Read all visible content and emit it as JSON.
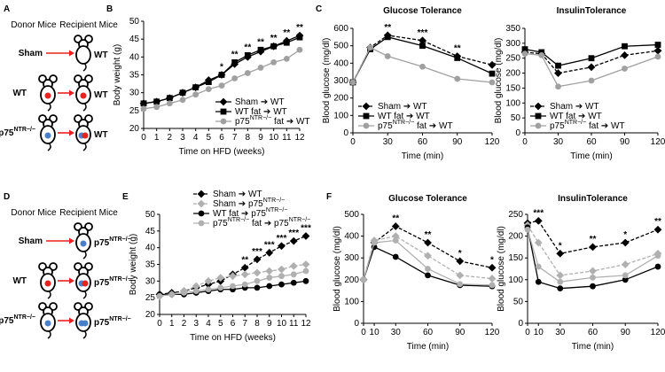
{
  "diagrams": [
    {
      "panel": "A",
      "headers": [
        "Donor Mice",
        "Recipient Mice"
      ],
      "rows": [
        {
          "donor": "Sham",
          "recipient": "WT"
        },
        {
          "donor": "WT",
          "recipient": "WT"
        },
        {
          "donor": "p75NTR−/−",
          "recipient": "WT"
        }
      ]
    },
    {
      "panel": "D",
      "headers": [
        "Donor Mice",
        "Recipient Mice"
      ],
      "rows": [
        {
          "donor": "Sham",
          "recipient": "p75NTR−/−"
        },
        {
          "donor": "WT",
          "recipient": "p75NTR−/−"
        },
        {
          "donor": "p75NTR−/−",
          "recipient": "p75NTR−/−"
        }
      ]
    }
  ],
  "chart_data": [
    {
      "type": "line",
      "panel": "B",
      "xlabel": "Time on HFD (weeks)",
      "ylabel": "Body weight (g)",
      "x": [
        0,
        1,
        2,
        3,
        4,
        5,
        6,
        7,
        8,
        9,
        10,
        11,
        12
      ],
      "xlim": [
        0,
        12
      ],
      "xticks": [
        0,
        1,
        2,
        3,
        4,
        5,
        6,
        7,
        8,
        9,
        10,
        11,
        12
      ],
      "ylim": [
        20,
        50
      ],
      "yticks": [
        20,
        25,
        30,
        35,
        40,
        45,
        50
      ],
      "legend": "lower-right",
      "series": [
        {
          "name": "Sham ➔ WT",
          "color": "#000000",
          "marker": "diamond",
          "dash": false,
          "values": [
            27,
            27.5,
            28.5,
            30,
            31.5,
            33.5,
            35,
            38,
            40,
            41.5,
            43,
            44.5,
            46
          ]
        },
        {
          "name": "WT fat ➔ WT",
          "color": "#000000",
          "marker": "square",
          "dash": false,
          "values": [
            27,
            27.5,
            28.5,
            30,
            31.5,
            33,
            35,
            38.5,
            40.5,
            42,
            43,
            44,
            45.5
          ]
        },
        {
          "name": "p75NTR−/− fat ➔ WT",
          "color": "#a0a0a0",
          "marker": "circle",
          "dash": false,
          "values": [
            25.5,
            26,
            27,
            28,
            29.5,
            31,
            32,
            34,
            35.5,
            37,
            38.5,
            39.5,
            42
          ]
        }
      ],
      "annotations": [
        {
          "x": 6,
          "text": "*"
        },
        {
          "x": 7,
          "text": "**"
        },
        {
          "x": 8,
          "text": "**"
        },
        {
          "x": 9,
          "text": "**"
        },
        {
          "x": 10,
          "text": "**"
        },
        {
          "x": 11,
          "text": "**"
        },
        {
          "x": 12,
          "text": "**"
        }
      ]
    },
    {
      "type": "line",
      "panel": "C",
      "title": "Glucose Tolerance",
      "xlabel": "Time (min)",
      "ylabel": "Blood glucose (mg/dl)",
      "x": [
        0,
        15,
        30,
        60,
        90,
        120
      ],
      "xlim": [
        0,
        120
      ],
      "xticks": [
        0,
        30,
        60,
        90,
        120
      ],
      "ylim": [
        0,
        600
      ],
      "yticks": [
        0,
        100,
        200,
        300,
        400,
        500,
        600
      ],
      "legend": "lower-left",
      "series": [
        {
          "name": "Sham ➔ WT",
          "color": "#000000",
          "marker": "diamond",
          "dash": true,
          "values": [
            290,
            490,
            560,
            530,
            440,
            390
          ]
        },
        {
          "name": "WT fat ➔ WT",
          "color": "#000000",
          "marker": "square",
          "dash": false,
          "values": [
            290,
            480,
            550,
            500,
            430,
            340
          ]
        },
        {
          "name": "p75NTR−/− fat ➔ WT",
          "color": "#a0a0a0",
          "marker": "circle",
          "dash": false,
          "values": [
            290,
            490,
            440,
            380,
            310,
            290
          ]
        }
      ],
      "annotations": [
        {
          "x": 30,
          "text": "**"
        },
        {
          "x": 60,
          "text": "***"
        },
        {
          "x": 90,
          "text": "**"
        }
      ]
    },
    {
      "type": "line",
      "title": "InsulinTolerance",
      "xlabel": "Time (min)",
      "ylabel": "Blood glucose (mg/dl)",
      "x": [
        0,
        15,
        30,
        60,
        90,
        120
      ],
      "xlim": [
        0,
        120
      ],
      "xticks": [
        0,
        30,
        60,
        90,
        120
      ],
      "ylim": [
        0,
        350
      ],
      "yticks": [
        0,
        50,
        100,
        150,
        200,
        250,
        300,
        350
      ],
      "legend": "lower-left",
      "series": [
        {
          "name": "Sham ➔ WT",
          "color": "#000000",
          "marker": "diamond",
          "dash": true,
          "values": [
            270,
            265,
            200,
            220,
            260,
            275
          ]
        },
        {
          "name": "WT fat ➔ WT",
          "color": "#000000",
          "marker": "square",
          "dash": false,
          "values": [
            280,
            270,
            225,
            250,
            290,
            295
          ]
        },
        {
          "name": "p75NTR−/− fat ➔ WT",
          "color": "#a0a0a0",
          "marker": "circle",
          "dash": false,
          "values": [
            265,
            260,
            155,
            175,
            215,
            255
          ]
        }
      ],
      "annotations": []
    },
    {
      "type": "line",
      "panel": "E",
      "xlabel": "Time on HFD (weeks)",
      "ylabel": "Body weight (g)",
      "x": [
        0,
        1,
        2,
        3,
        4,
        5,
        6,
        7,
        8,
        9,
        10,
        11,
        12
      ],
      "xlim": [
        0,
        12
      ],
      "xticks": [
        0,
        1,
        2,
        3,
        4,
        5,
        6,
        7,
        8,
        9,
        10,
        11,
        12
      ],
      "ylim": [
        20,
        50
      ],
      "yticks": [
        20,
        25,
        30,
        35,
        40,
        45,
        50
      ],
      "legend": "upper-left",
      "series": [
        {
          "name": "Sham ➔ WT",
          "color": "#000000",
          "marker": "diamond",
          "dash": true,
          "values": [
            26,
            26.5,
            27,
            28,
            29,
            30,
            32,
            34,
            36.5,
            38.5,
            40.5,
            42,
            43.5
          ]
        },
        {
          "name": "Sham ➔ p75NTR−/−",
          "color": "#b0b0b0",
          "marker": "diamond",
          "dash": true,
          "values": [
            25.5,
            26,
            27,
            28.5,
            30,
            31,
            31.5,
            32,
            32.5,
            33,
            33.5,
            34.5,
            35
          ]
        },
        {
          "name": "WT fat ➔ p75NTR−/−",
          "color": "#000000",
          "marker": "circle",
          "dash": false,
          "values": [
            26,
            26,
            26,
            26.5,
            27,
            27.5,
            27.5,
            28,
            28,
            28.5,
            29,
            29.5,
            30
          ]
        },
        {
          "name": "p75NTR−/− fat ➔ p75NTR−/−",
          "color": "#b0b0b0",
          "marker": "circle",
          "dash": false,
          "values": [
            25.5,
            26,
            26.5,
            27,
            27.5,
            28,
            28.5,
            29,
            30,
            31,
            31.5,
            32,
            33
          ]
        }
      ],
      "annotations": [
        {
          "x": 7,
          "text": "**"
        },
        {
          "x": 8,
          "text": "***"
        },
        {
          "x": 9,
          "text": "***"
        },
        {
          "x": 10,
          "text": "***"
        },
        {
          "x": 11,
          "text": "***"
        },
        {
          "x": 12,
          "text": "***"
        }
      ]
    },
    {
      "type": "line",
      "panel": "F",
      "title": "Glucose Tolerance",
      "xlabel": "Time (min)",
      "ylabel": "Blood glucose (mg/dl)",
      "x": [
        0,
        10,
        30,
        60,
        90,
        120
      ],
      "xlim": [
        0,
        120
      ],
      "xticks": [
        0,
        10,
        30,
        60,
        90,
        120
      ],
      "ylim": [
        0,
        500
      ],
      "yticks": [
        0,
        100,
        200,
        300,
        400,
        500
      ],
      "series": [
        {
          "color": "#000000",
          "marker": "diamond",
          "dash": true,
          "values": [
            200,
            370,
            445,
            370,
            285,
            255
          ]
        },
        {
          "color": "#b0b0b0",
          "marker": "diamond",
          "dash": true,
          "values": [
            200,
            380,
            400,
            310,
            220,
            205
          ]
        },
        {
          "color": "#000000",
          "marker": "circle",
          "dash": false,
          "values": [
            200,
            350,
            305,
            220,
            175,
            170
          ]
        },
        {
          "color": "#b0b0b0",
          "marker": "circle",
          "dash": false,
          "values": [
            200,
            370,
            380,
            250,
            180,
            175
          ]
        }
      ],
      "annotations": [
        {
          "x": 30,
          "text": "**"
        },
        {
          "x": 60,
          "text": "**"
        },
        {
          "x": 90,
          "text": "*"
        },
        {
          "x": 120,
          "text": "*"
        }
      ]
    },
    {
      "type": "line",
      "title": "InsulinTolerance",
      "xlabel": "Time (min)",
      "ylabel": "Blood glucose (mg/dl)",
      "x": [
        0,
        10,
        30,
        60,
        90,
        120
      ],
      "xlim": [
        0,
        120
      ],
      "xticks": [
        0,
        10,
        30,
        60,
        90,
        120
      ],
      "ylim": [
        0,
        250
      ],
      "yticks": [
        0,
        50,
        100,
        150,
        200,
        250
      ],
      "series": [
        {
          "color": "#000000",
          "marker": "diamond",
          "dash": true,
          "values": [
            230,
            235,
            160,
            175,
            185,
            215
          ]
        },
        {
          "color": "#b0b0b0",
          "marker": "diamond",
          "dash": true,
          "values": [
            225,
            185,
            110,
            120,
            135,
            160
          ]
        },
        {
          "color": "#000000",
          "marker": "circle",
          "dash": false,
          "values": [
            220,
            95,
            80,
            85,
            100,
            130
          ]
        },
        {
          "color": "#b0b0b0",
          "marker": "circle",
          "dash": false,
          "values": [
            215,
            130,
            95,
            105,
            110,
            155
          ]
        }
      ],
      "annotations": [
        {
          "x": 10,
          "text": "***"
        },
        {
          "x": 30,
          "text": "*"
        },
        {
          "x": 60,
          "text": "**"
        },
        {
          "x": 90,
          "text": "*"
        },
        {
          "x": 120,
          "text": "**"
        }
      ]
    }
  ]
}
